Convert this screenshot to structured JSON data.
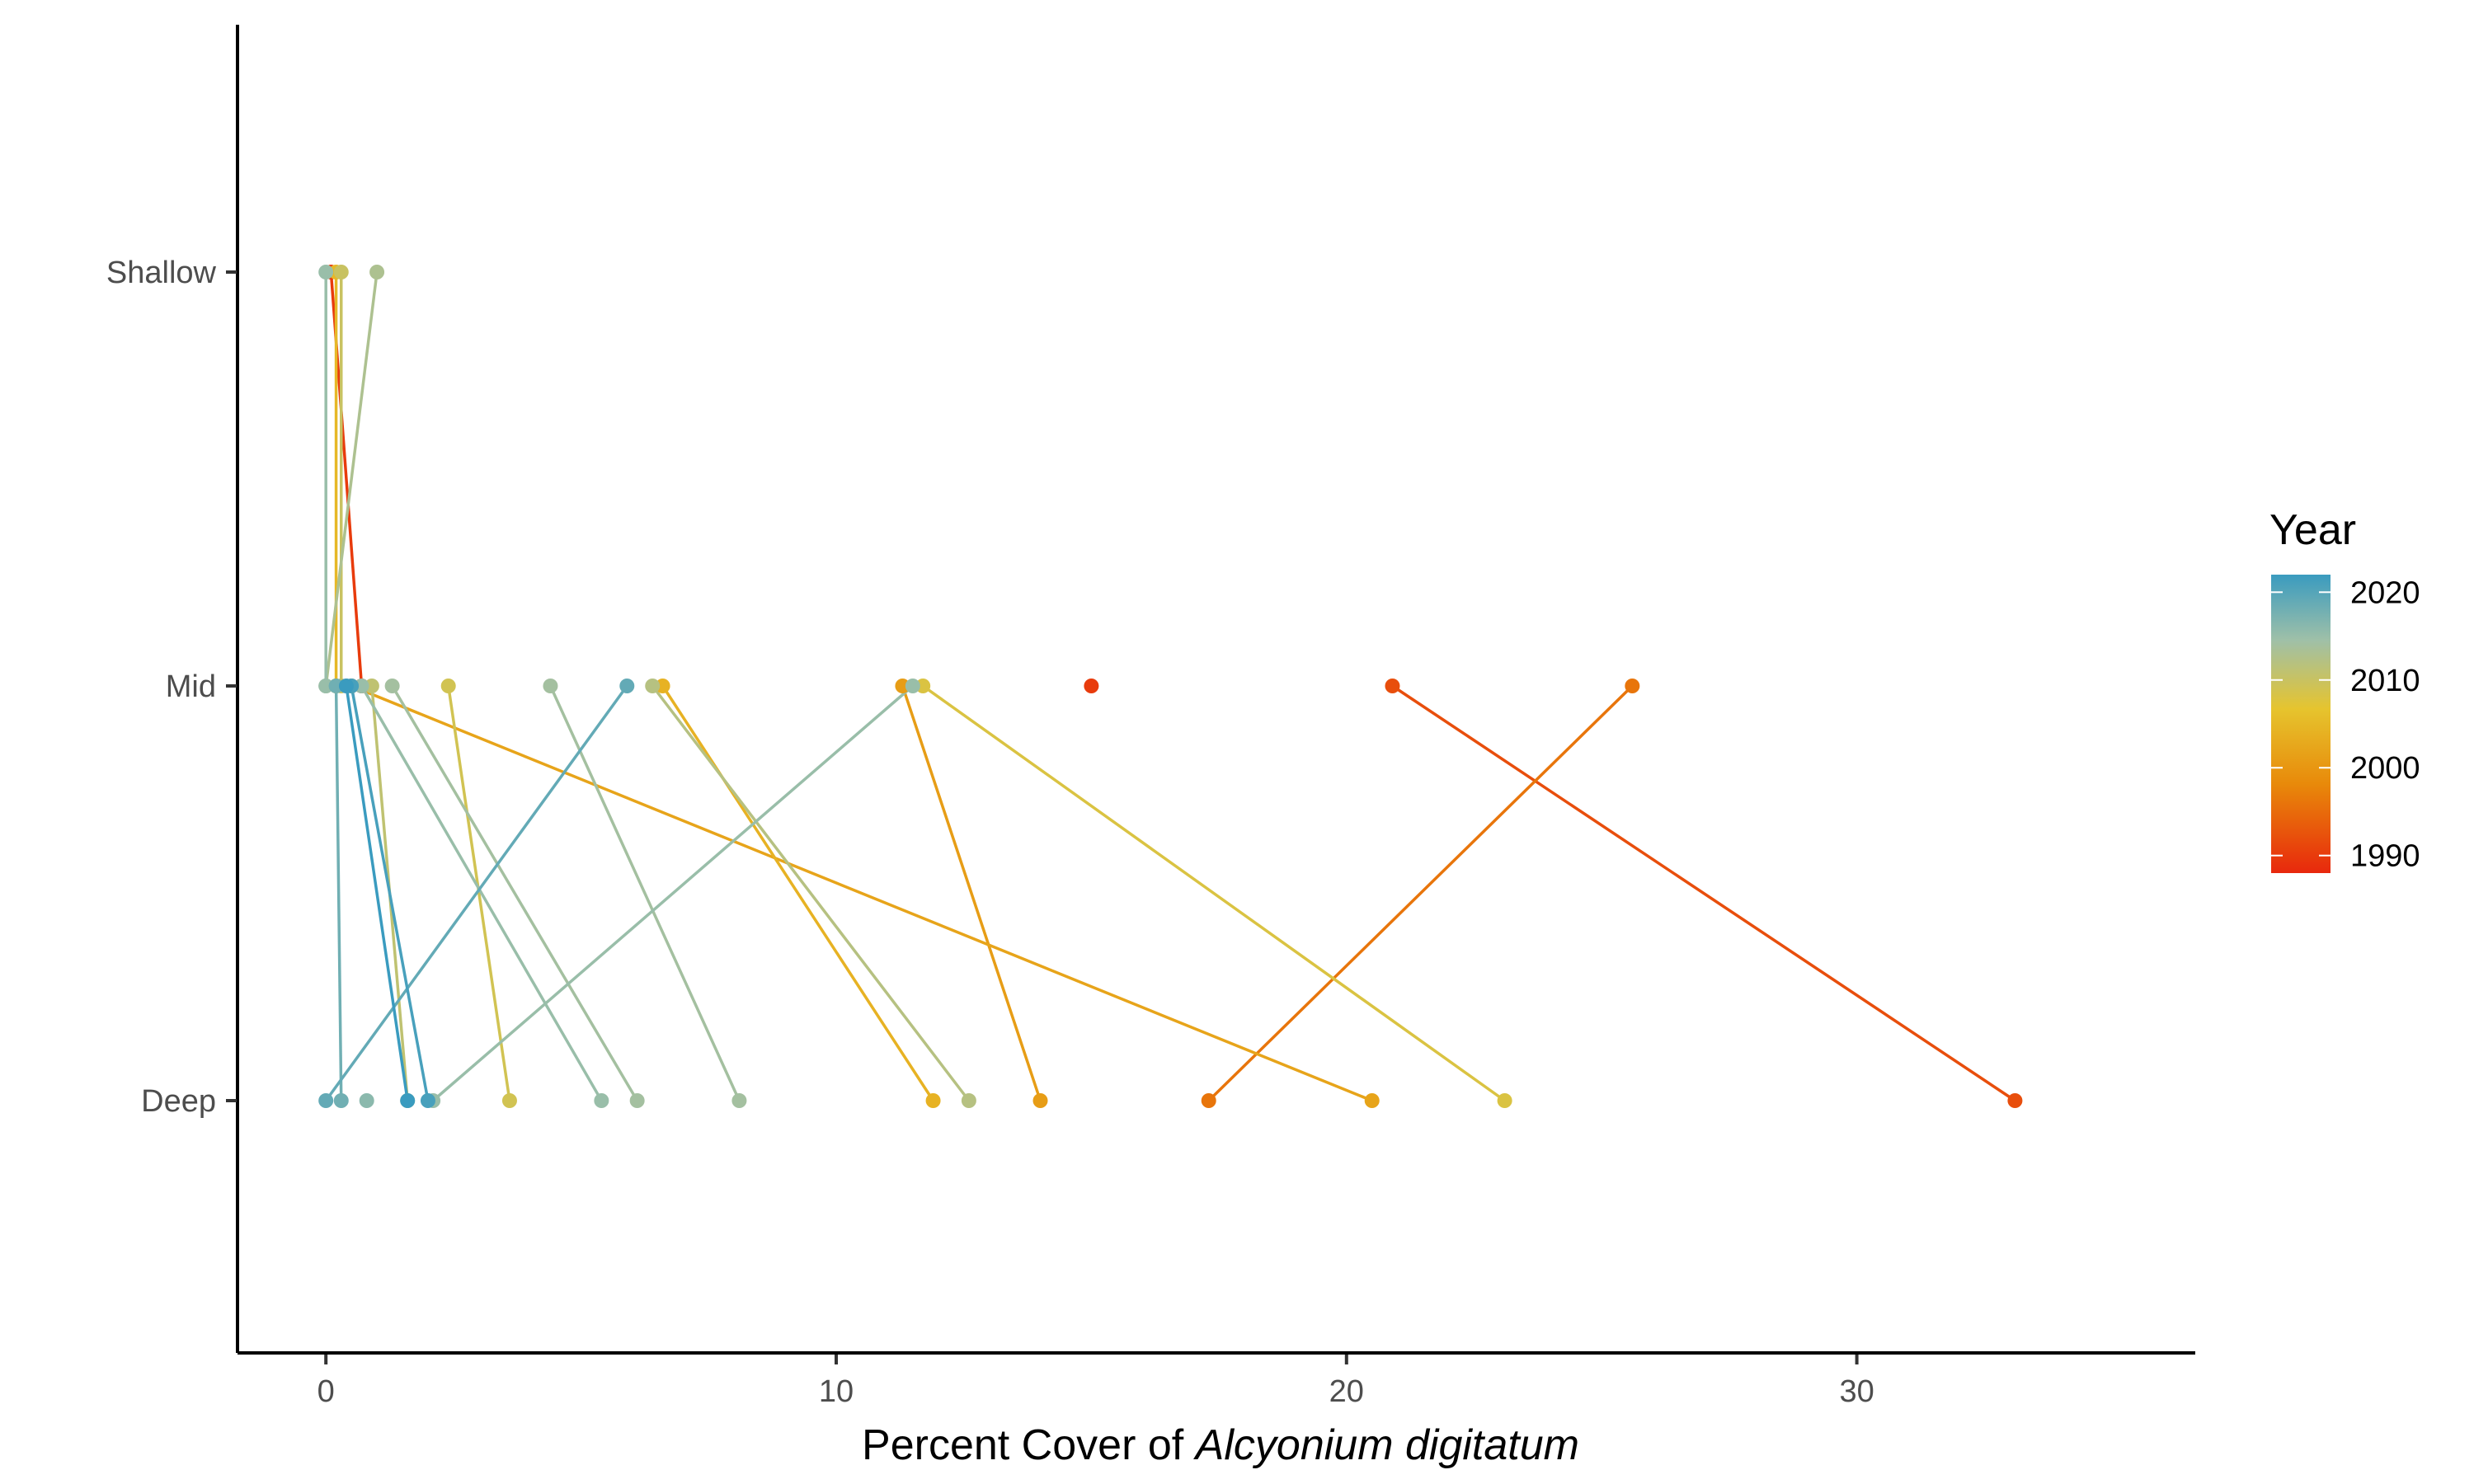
{
  "chart_data": {
    "type": "line",
    "xlabel_prefix": "Percent Cover of ",
    "xlabel_italic": "Alcyonium digitatum",
    "ylabel": "",
    "xlim": [
      -1.7,
      36.6
    ],
    "x_ticks": [
      "0",
      "10",
      "20",
      "30"
    ],
    "y_categories": [
      "Deep",
      "Mid",
      "Shallow"
    ],
    "grid": false,
    "legend": {
      "title": "Year",
      "position": "right",
      "ticks": [
        "1990",
        "2000",
        "2010",
        "2020"
      ],
      "range": [
        1988,
        2022
      ],
      "colors": {
        "low": "#e8280d",
        "q1": "#e88a0a",
        "mid": "#e6c42e",
        "q3": "#9fc0a8",
        "high": "#3a9bbf"
      }
    },
    "series": [
      {
        "year": 1990,
        "points": [
          {
            "x": 0.7,
            "y": "Mid"
          },
          {
            "x": 0.1,
            "y": "Shallow"
          }
        ]
      },
      {
        "year": 1990,
        "points": [
          {
            "x": 15.0,
            "y": "Mid"
          }
        ]
      },
      {
        "year": 1992,
        "points": [
          {
            "x": 20.9,
            "y": "Mid"
          },
          {
            "x": 33.1,
            "y": "Deep"
          }
        ]
      },
      {
        "year": 1996,
        "points": [
          {
            "x": 25.6,
            "y": "Mid"
          },
          {
            "x": 17.3,
            "y": "Deep"
          }
        ]
      },
      {
        "year": 2001,
        "points": [
          {
            "x": 11.3,
            "y": "Mid"
          },
          {
            "x": 14.0,
            "y": "Deep"
          }
        ]
      },
      {
        "year": 2002,
        "points": [
          {
            "x": 0.5,
            "y": "Mid"
          },
          {
            "x": 20.5,
            "y": "Deep"
          }
        ]
      },
      {
        "year": 2004,
        "points": [
          {
            "x": 6.6,
            "y": "Mid"
          },
          {
            "x": 11.9,
            "y": "Deep"
          }
        ]
      },
      {
        "year": 2005,
        "points": [
          {
            "x": 0.2,
            "y": "Mid"
          },
          {
            "x": 0.2,
            "y": "Shallow"
          }
        ]
      },
      {
        "year": 2008,
        "points": [
          {
            "x": 11.7,
            "y": "Mid"
          },
          {
            "x": 23.1,
            "y": "Deep"
          }
        ]
      },
      {
        "year": 2009,
        "points": [
          {
            "x": 2.4,
            "y": "Mid"
          },
          {
            "x": 3.6,
            "y": "Deep"
          }
        ]
      },
      {
        "year": 2010,
        "points": [
          {
            "x": 0.3,
            "y": "Mid"
          },
          {
            "x": 0.3,
            "y": "Shallow"
          }
        ]
      },
      {
        "year": 2011,
        "points": [
          {
            "x": 0.9,
            "y": "Mid"
          },
          {
            "x": 1.6,
            "y": "Deep"
          }
        ]
      },
      {
        "year": 2012,
        "points": [
          {
            "x": 6.4,
            "y": "Mid"
          },
          {
            "x": 12.6,
            "y": "Deep"
          }
        ]
      },
      {
        "year": 2013,
        "points": [
          {
            "x": 0.0,
            "y": "Mid"
          },
          {
            "x": 1.0,
            "y": "Shallow"
          }
        ]
      },
      {
        "year": 2014,
        "points": [
          {
            "x": 4.4,
            "y": "Mid"
          },
          {
            "x": 8.1,
            "y": "Deep"
          }
        ]
      },
      {
        "year": 2014,
        "points": [
          {
            "x": 1.3,
            "y": "Mid"
          },
          {
            "x": 6.1,
            "y": "Deep"
          }
        ]
      },
      {
        "year": 2015,
        "points": [
          {
            "x": 11.5,
            "y": "Mid"
          },
          {
            "x": 2.1,
            "y": "Deep"
          }
        ]
      },
      {
        "year": 2015,
        "points": [
          {
            "x": 0.7,
            "y": "Mid"
          },
          {
            "x": 5.4,
            "y": "Deep"
          }
        ]
      },
      {
        "year": 2015,
        "points": [
          {
            "x": 0.0,
            "y": "Mid"
          },
          {
            "x": 0.0,
            "y": "Shallow"
          }
        ]
      },
      {
        "year": 2016,
        "points": [
          {
            "x": 0.8,
            "y": "Deep"
          }
        ]
      },
      {
        "year": 2018,
        "points": [
          {
            "x": 0.2,
            "y": "Mid"
          },
          {
            "x": 0.3,
            "y": "Deep"
          }
        ]
      },
      {
        "year": 2019,
        "points": [
          {
            "x": 5.9,
            "y": "Mid"
          },
          {
            "x": 0.0,
            "y": "Deep"
          }
        ]
      },
      {
        "year": 2021,
        "points": [
          {
            "x": 0.5,
            "y": "Mid"
          },
          {
            "x": 2.0,
            "y": "Deep"
          }
        ]
      },
      {
        "year": 2022,
        "points": [
          {
            "x": 0.4,
            "y": "Mid"
          },
          {
            "x": 1.6,
            "y": "Deep"
          }
        ]
      }
    ]
  }
}
